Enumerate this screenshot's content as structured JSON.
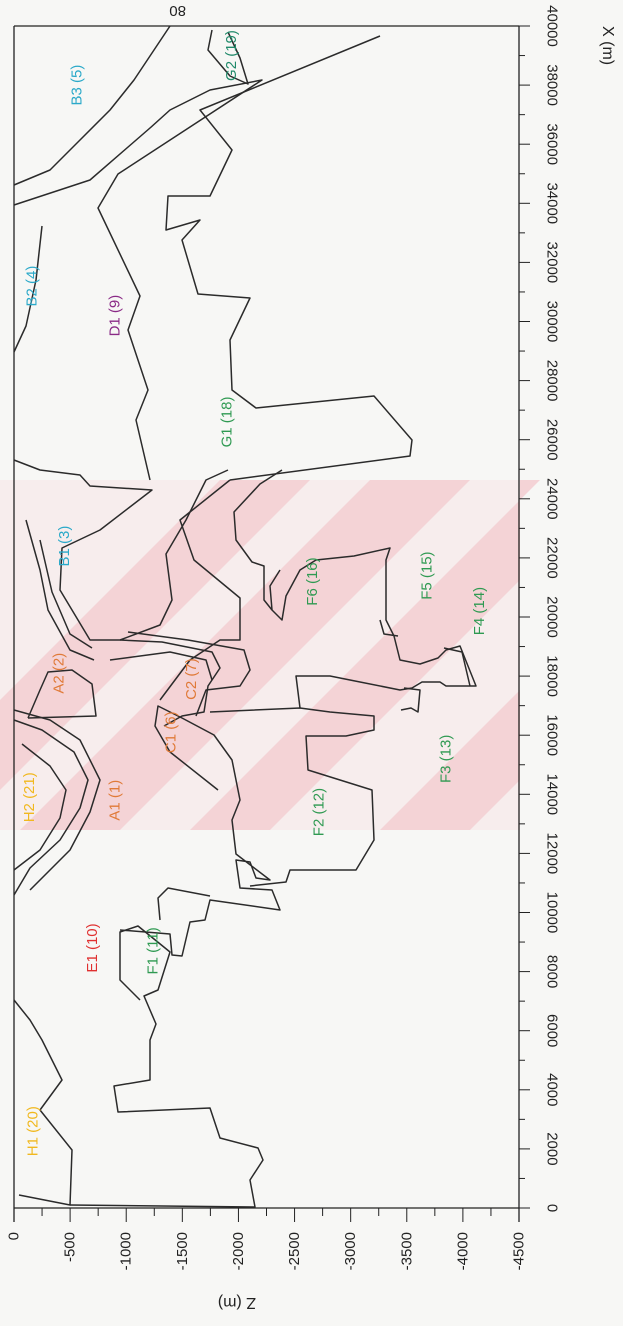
{
  "page": {
    "top_marker": "80"
  },
  "axes": {
    "x": {
      "title": "X (m)",
      "min": 0,
      "max": 40000,
      "ticks": [
        "0",
        "2000",
        "4000",
        "6000",
        "8000",
        "10000",
        "12000",
        "14000",
        "16000",
        "18000",
        "20000",
        "22000",
        "24000",
        "26000",
        "28000",
        "30000",
        "32000",
        "34000",
        "36000",
        "38000",
        "40000"
      ]
    },
    "z": {
      "title": "Z (m)",
      "min": 0,
      "max": -4500,
      "ticks": [
        "0",
        "-500",
        "-1000",
        "-1500",
        "-2000",
        "-2500",
        "-3000",
        "-3500",
        "-4000",
        "-4500"
      ]
    }
  },
  "colors": {
    "orange": "#e07a38",
    "blue": "#2ba9c9",
    "purple": "#8a2a86",
    "green": "#2f9a52",
    "red": "#e03030",
    "yellow": "#f1b81e",
    "teal": "#208a6a",
    "watermark": "#f2b6bd"
  },
  "zones": [
    {
      "label": "A1 (1)",
      "color": "orange",
      "x": 13800,
      "z": -900
    },
    {
      "label": "A2 (2)",
      "color": "orange",
      "x": 18100,
      "z": -400
    },
    {
      "label": "B1 (3)",
      "color": "blue",
      "x": 22400,
      "z": -450
    },
    {
      "label": "B2 (4)",
      "color": "blue",
      "x": 31200,
      "z": -160
    },
    {
      "label": "B3 (5)",
      "color": "blue",
      "x": 38000,
      "z": -560
    },
    {
      "label": "C1 (6)",
      "color": "orange",
      "x": 16100,
      "z": -1400
    },
    {
      "label": "C2 (7)",
      "color": "orange",
      "x": 17900,
      "z": -1580
    },
    {
      "label": "D1 (9)",
      "color": "purple",
      "x": 30200,
      "z": -900
    },
    {
      "label": "E1 (10)",
      "color": "red",
      "x": 8800,
      "z": -700
    },
    {
      "label": "F1 (11)",
      "color": "green",
      "x": 8700,
      "z": -1240
    },
    {
      "label": "F2 (12)",
      "color": "green",
      "x": 13400,
      "z": -2720
    },
    {
      "label": "F3 (13)",
      "color": "green",
      "x": 15200,
      "z": -3850
    },
    {
      "label": "F4 (14)",
      "color": "green",
      "x": 20200,
      "z": -4150
    },
    {
      "label": "F5 (15)",
      "color": "green",
      "x": 21400,
      "z": -3680
    },
    {
      "label": "F6 (16)",
      "color": "green",
      "x": 21200,
      "z": -2660
    },
    {
      "label": "G1 (18)",
      "color": "green",
      "x": 26600,
      "z": -1900
    },
    {
      "label": "G2 (19)",
      "color": "teal",
      "x": 39000,
      "z": -1940
    },
    {
      "label": "H1 (20)",
      "color": "yellow",
      "x": 2600,
      "z": -170
    },
    {
      "label": "H2 (21)",
      "color": "yellow",
      "x": 13900,
      "z": -140
    }
  ]
}
